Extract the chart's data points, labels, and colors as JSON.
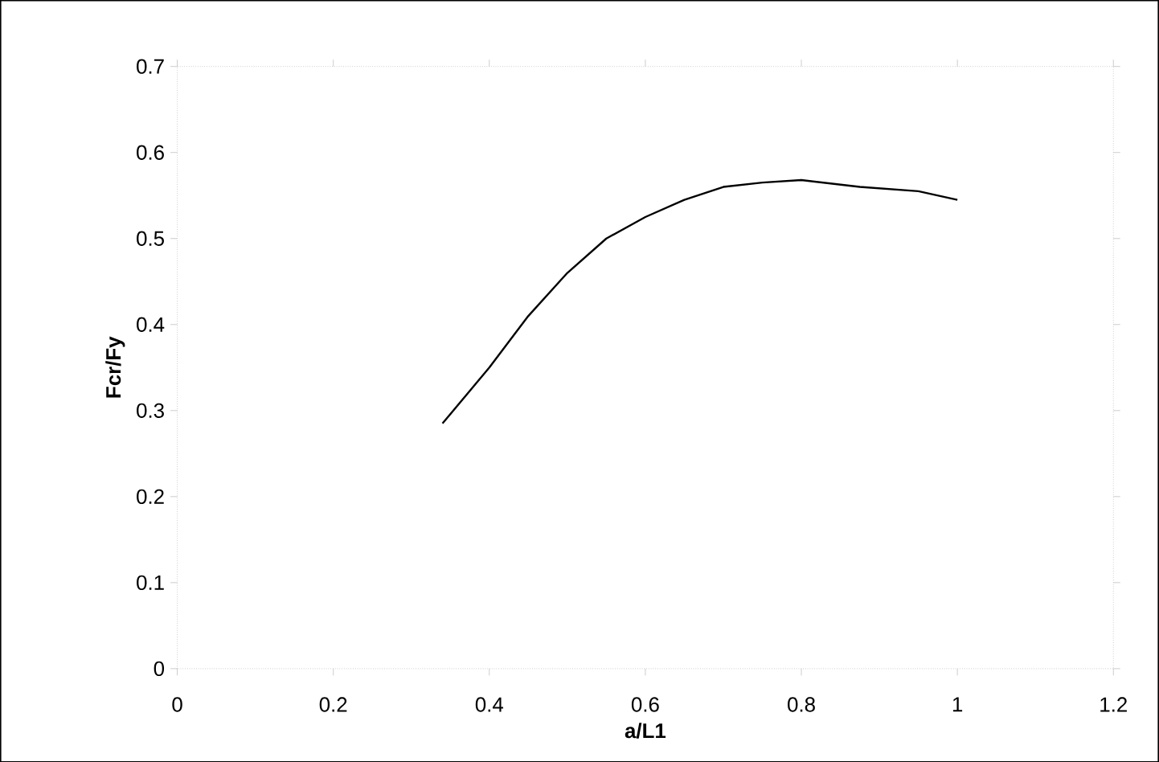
{
  "chart_data": {
    "type": "line",
    "xlabel": "a/L1",
    "ylabel": "Fcr/Fy",
    "series": [
      {
        "color": "#000000",
        "x": [
          0.34,
          0.4,
          0.45,
          0.5,
          0.55,
          0.6,
          0.65,
          0.7,
          0.75,
          0.8,
          0.875,
          0.95,
          1.0
        ],
        "values": [
          0.285,
          0.35,
          0.41,
          0.46,
          0.5,
          0.525,
          0.545,
          0.56,
          0.565,
          0.568,
          0.56,
          0.555,
          0.545
        ]
      }
    ],
    "xlim": [
      0,
      1.2
    ],
    "ylim": [
      0,
      0.7
    ],
    "xticks": [
      0,
      0.2,
      0.4,
      0.6,
      0.8,
      1,
      1.2
    ],
    "yticks": [
      0,
      0.1,
      0.2,
      0.3,
      0.4,
      0.5,
      0.6,
      0.7
    ],
    "marker": "none",
    "line_style": "solid"
  }
}
